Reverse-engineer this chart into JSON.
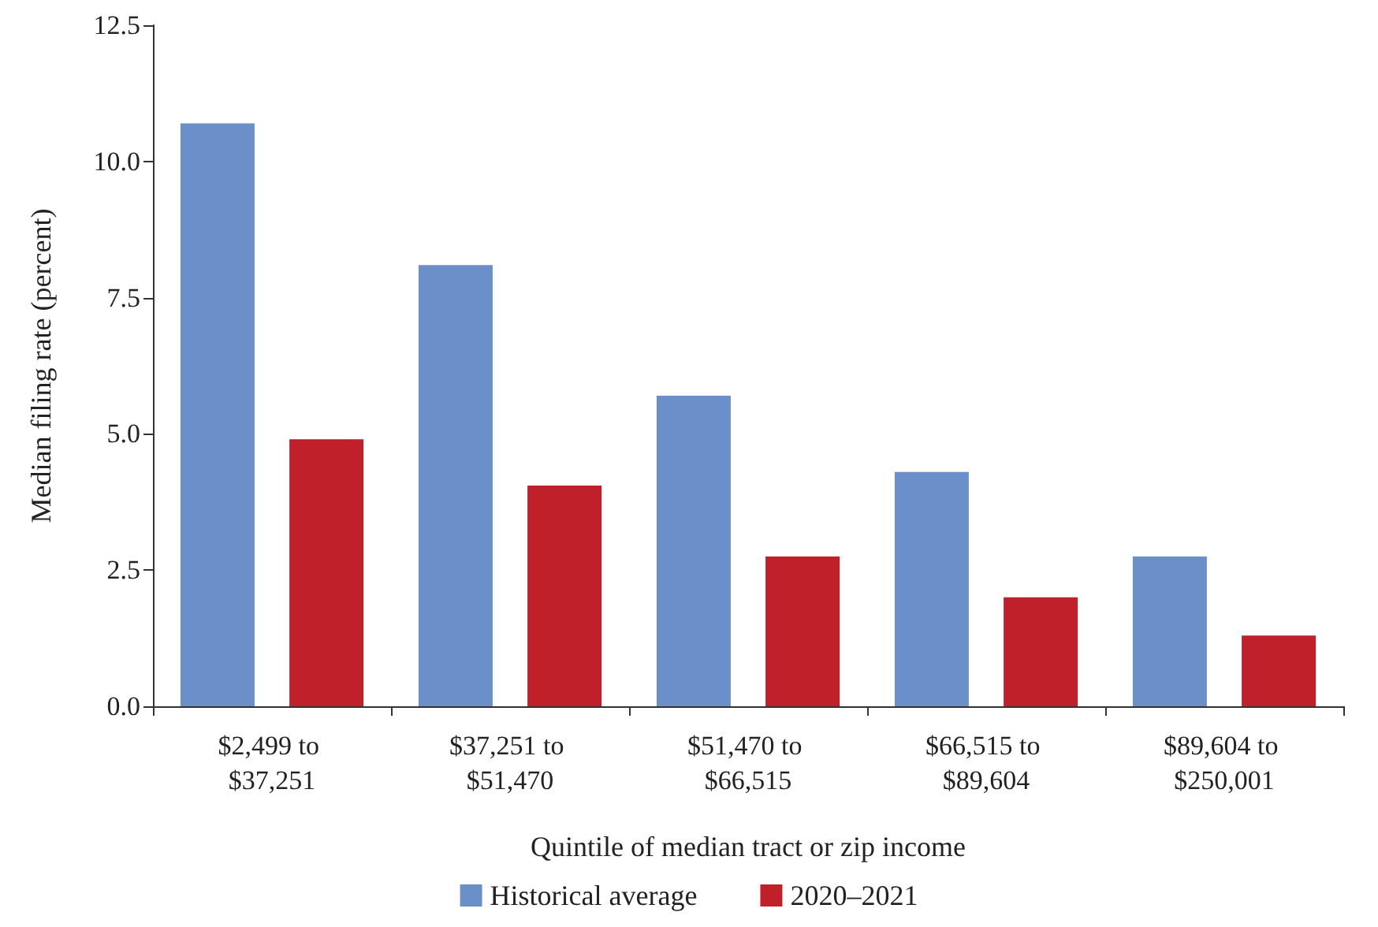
{
  "chart_data": {
    "type": "bar",
    "xlabel": "Quintile of median tract or zip income",
    "ylabel": "Median filing rate (percent)",
    "categories": [
      "$2,499 to $37,251",
      "$37,251 to $51,470",
      "$51,470 to $66,515",
      "$66,515 to $89,604",
      "$89,604 to $250,001"
    ],
    "series": [
      {
        "name": "Historical average",
        "color": "#6b8fc9",
        "values": [
          10.7,
          8.1,
          5.7,
          4.3,
          2.75
        ]
      },
      {
        "name": "2020–2021",
        "color": "#c0202a",
        "values": [
          4.9,
          4.05,
          2.75,
          2.0,
          1.3
        ]
      }
    ],
    "ylim": [
      0,
      12.5
    ],
    "yticks": [
      {
        "value": 0,
        "label": "0.0"
      },
      {
        "value": 2.5,
        "label": "2.5"
      },
      {
        "value": 5,
        "label": "5.0"
      },
      {
        "value": 7.5,
        "label": "7.5"
      },
      {
        "value": 10,
        "label": "10.0"
      },
      {
        "value": 12.5,
        "label": "12.5"
      }
    ],
    "grid": false,
    "legend": "bottom"
  }
}
